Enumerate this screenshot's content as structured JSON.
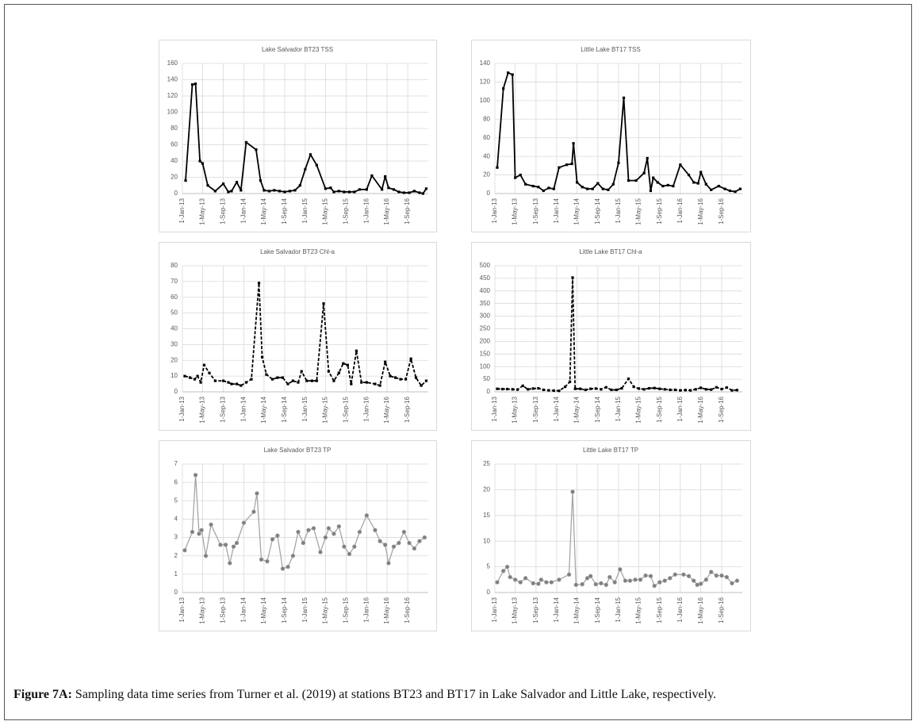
{
  "chart_data": [
    {
      "type": "line",
      "title": "Lake Salvador BT23 TSS",
      "color": "#000000",
      "line_style": "solid",
      "marker": "square",
      "grid": true,
      "ylim": [
        0,
        160
      ],
      "yticks": [
        0,
        20,
        40,
        60,
        80,
        100,
        120,
        140,
        160
      ],
      "xlim": [
        "2013-01-01",
        "2017-01-01"
      ],
      "xticks": [
        {
          "value": "2013-01-01",
          "label": "1-Jan-13"
        },
        {
          "value": "2013-05-01",
          "label": "1-May-13"
        },
        {
          "value": "2013-09-01",
          "label": "1-Sep-13"
        },
        {
          "value": "2014-01-01",
          "label": "1-Jan-14"
        },
        {
          "value": "2014-05-01",
          "label": "1-May-14"
        },
        {
          "value": "2014-09-01",
          "label": "1-Sep-14"
        },
        {
          "value": "2015-01-01",
          "label": "1-Jan-15"
        },
        {
          "value": "2015-05-01",
          "label": "1-May-15"
        },
        {
          "value": "2015-09-01",
          "label": "1-Sep-15"
        },
        {
          "value": "2016-01-01",
          "label": "1-Jan-16"
        },
        {
          "value": "2016-05-01",
          "label": "1-May-16"
        },
        {
          "value": "2016-09-01",
          "label": "1-Sep-16"
        }
      ],
      "x": [
        "2013-01-20",
        "2013-03-01",
        "2013-03-20",
        "2013-04-15",
        "2013-05-01",
        "2013-06-01",
        "2013-07-15",
        "2013-09-01",
        "2013-10-01",
        "2013-10-20",
        "2013-11-20",
        "2013-12-15",
        "2014-01-15",
        "2014-03-15",
        "2014-04-10",
        "2014-05-01",
        "2014-06-01",
        "2014-07-01",
        "2014-08-01",
        "2014-09-01",
        "2014-10-01",
        "2014-11-01",
        "2014-12-01",
        "2015-01-01",
        "2015-02-01",
        "2015-03-10",
        "2015-05-01",
        "2015-06-01",
        "2015-06-20",
        "2015-07-20",
        "2015-08-20",
        "2015-09-20",
        "2015-10-20",
        "2015-11-20",
        "2016-01-01",
        "2016-02-01",
        "2016-04-01",
        "2016-04-20",
        "2016-05-10",
        "2016-06-10",
        "2016-07-10",
        "2016-08-10",
        "2016-09-10",
        "2016-10-10",
        "2016-11-10",
        "2016-12-01",
        "2016-12-20"
      ],
      "values": [
        16,
        134,
        135,
        40,
        37,
        10,
        3,
        12,
        2,
        3,
        14,
        4,
        63,
        54,
        16,
        4,
        3,
        4,
        3,
        2,
        3,
        4,
        10,
        30,
        48,
        35,
        6,
        7,
        2,
        3,
        2,
        2,
        2,
        5,
        5,
        22,
        5,
        21,
        7,
        5,
        2,
        1,
        1,
        3,
        1,
        0,
        6
      ]
    },
    {
      "type": "line",
      "title": "Little Lake BT17 TSS",
      "color": "#000000",
      "line_style": "solid",
      "marker": "square",
      "grid": true,
      "ylim": [
        0,
        140
      ],
      "yticks": [
        0,
        20,
        40,
        60,
        80,
        100,
        120,
        140
      ],
      "xlim": [
        "2013-01-01",
        "2017-01-01"
      ],
      "xticks": [
        {
          "value": "2013-01-01",
          "label": "1-Jan-13"
        },
        {
          "value": "2013-05-01",
          "label": "1-May-13"
        },
        {
          "value": "2013-09-01",
          "label": "1-Sep-13"
        },
        {
          "value": "2014-01-01",
          "label": "1-Jan-14"
        },
        {
          "value": "2014-05-01",
          "label": "1-May-14"
        },
        {
          "value": "2014-09-01",
          "label": "1-Sep-14"
        },
        {
          "value": "2015-01-01",
          "label": "1-Jan-15"
        },
        {
          "value": "2015-05-01",
          "label": "1-May-15"
        },
        {
          "value": "2015-09-01",
          "label": "1-Sep-15"
        },
        {
          "value": "2016-01-01",
          "label": "1-Jan-16"
        },
        {
          "value": "2016-05-01",
          "label": "1-May-16"
        },
        {
          "value": "2016-09-01",
          "label": "1-Sep-16"
        }
      ],
      "x": [
        "2013-01-15",
        "2013-02-20",
        "2013-03-20",
        "2013-04-15",
        "2013-05-01",
        "2013-06-01",
        "2013-07-01",
        "2013-08-15",
        "2013-09-15",
        "2013-10-15",
        "2013-11-15",
        "2013-12-15",
        "2014-01-15",
        "2014-03-01",
        "2014-04-01",
        "2014-04-10",
        "2014-05-01",
        "2014-06-01",
        "2014-07-01",
        "2014-08-01",
        "2014-09-01",
        "2014-10-01",
        "2014-11-01",
        "2014-12-01",
        "2015-01-01",
        "2015-02-01",
        "2015-03-01",
        "2015-04-15",
        "2015-06-01",
        "2015-06-20",
        "2015-07-10",
        "2015-07-25",
        "2015-08-20",
        "2015-09-20",
        "2015-10-20",
        "2015-11-20",
        "2016-01-01",
        "2016-02-20",
        "2016-03-20",
        "2016-04-15",
        "2016-05-01",
        "2016-06-01",
        "2016-07-01",
        "2016-08-15",
        "2016-09-20",
        "2016-10-20",
        "2016-11-20",
        "2016-12-20"
      ],
      "values": [
        28,
        113,
        130,
        128,
        17,
        20,
        10,
        8,
        7,
        3,
        6,
        5,
        28,
        31,
        32,
        54,
        12,
        7,
        5,
        5,
        11,
        5,
        4,
        10,
        33,
        103,
        14,
        14,
        22,
        38,
        3,
        17,
        12,
        8,
        9,
        8,
        31,
        20,
        12,
        11,
        23,
        10,
        4,
        8,
        5,
        3,
        2,
        5
      ]
    },
    {
      "type": "line",
      "title": "Lake Salvador BT23 Chl-a",
      "color": "#000000",
      "line_style": "dashed",
      "marker": "square",
      "grid": true,
      "ylim": [
        0,
        80
      ],
      "yticks": [
        0,
        10,
        20,
        30,
        40,
        50,
        60,
        70,
        80
      ],
      "xlim": [
        "2013-01-01",
        "2017-01-01"
      ],
      "xticks": [
        {
          "value": "2013-01-01",
          "label": "1-Jan-13"
        },
        {
          "value": "2013-05-01",
          "label": "1-May-13"
        },
        {
          "value": "2013-09-01",
          "label": "1-Sep-13"
        },
        {
          "value": "2014-01-01",
          "label": "1-Jan-14"
        },
        {
          "value": "2014-05-01",
          "label": "1-May-14"
        },
        {
          "value": "2014-09-01",
          "label": "1-Sep-14"
        },
        {
          "value": "2015-01-01",
          "label": "1-Jan-15"
        },
        {
          "value": "2015-05-01",
          "label": "1-May-15"
        },
        {
          "value": "2015-09-01",
          "label": "1-Sep-15"
        },
        {
          "value": "2016-01-01",
          "label": "1-Jan-16"
        },
        {
          "value": "2016-05-01",
          "label": "1-May-16"
        },
        {
          "value": "2016-09-01",
          "label": "1-Sep-16"
        }
      ],
      "x": [
        "2013-01-15",
        "2013-02-15",
        "2013-03-15",
        "2013-04-01",
        "2013-04-20",
        "2013-05-10",
        "2013-06-10",
        "2013-07-15",
        "2013-09-01",
        "2013-10-01",
        "2013-10-20",
        "2013-11-20",
        "2013-12-15",
        "2014-01-15",
        "2014-02-15",
        "2014-04-01",
        "2014-04-20",
        "2014-05-15",
        "2014-06-20",
        "2014-07-20",
        "2014-08-20",
        "2014-09-20",
        "2014-10-20",
        "2014-11-20",
        "2014-12-10",
        "2015-01-10",
        "2015-02-10",
        "2015-03-10",
        "2015-04-20",
        "2015-05-20",
        "2015-06-20",
        "2015-07-20",
        "2015-08-15",
        "2015-09-10",
        "2015-10-01",
        "2015-11-01",
        "2015-12-01",
        "2016-01-01",
        "2016-02-20",
        "2016-03-20",
        "2016-04-20",
        "2016-05-20",
        "2016-06-20",
        "2016-07-20",
        "2016-08-20",
        "2016-09-20",
        "2016-10-20",
        "2016-11-20",
        "2016-12-20"
      ],
      "values": [
        10,
        9,
        8,
        10,
        6,
        17,
        12,
        7,
        7,
        6,
        5,
        5,
        4,
        6,
        8,
        69,
        22,
        11,
        8,
        9,
        9,
        5,
        7,
        6,
        13,
        7,
        7,
        7,
        56,
        13,
        7,
        12,
        18,
        17,
        5,
        26,
        6,
        6,
        5,
        4,
        19,
        10,
        9,
        8,
        8,
        21,
        9,
        4,
        7
      ]
    },
    {
      "type": "line",
      "title": "Little Lake BT17 Chl-a",
      "color": "#000000",
      "line_style": "dashed",
      "marker": "square",
      "grid": true,
      "ylim": [
        0,
        500
      ],
      "yticks": [
        0,
        50,
        100,
        150,
        200,
        250,
        300,
        350,
        400,
        450,
        500
      ],
      "xlim": [
        "2013-01-01",
        "2017-01-01"
      ],
      "xticks": [
        {
          "value": "2013-01-01",
          "label": "1-Jan-13"
        },
        {
          "value": "2013-05-01",
          "label": "1-May-13"
        },
        {
          "value": "2013-09-01",
          "label": "1-Sep-13"
        },
        {
          "value": "2014-01-01",
          "label": "1-Jan-14"
        },
        {
          "value": "2014-05-01",
          "label": "1-May-14"
        },
        {
          "value": "2014-09-01",
          "label": "1-Sep-14"
        },
        {
          "value": "2015-01-01",
          "label": "1-Jan-15"
        },
        {
          "value": "2015-05-01",
          "label": "1-May-15"
        },
        {
          "value": "2015-09-01",
          "label": "1-Sep-15"
        },
        {
          "value": "2016-01-01",
          "label": "1-Jan-16"
        },
        {
          "value": "2016-05-01",
          "label": "1-May-16"
        },
        {
          "value": "2016-09-01",
          "label": "1-Sep-16"
        }
      ],
      "x": [
        "2013-01-15",
        "2013-02-15",
        "2013-03-15",
        "2013-04-15",
        "2013-05-15",
        "2013-06-15",
        "2013-07-15",
        "2013-08-15",
        "2013-09-15",
        "2013-10-15",
        "2013-11-15",
        "2013-12-15",
        "2014-01-15",
        "2014-02-20",
        "2014-03-20",
        "2014-04-05",
        "2014-04-20",
        "2014-05-20",
        "2014-06-20",
        "2014-07-20",
        "2014-08-20",
        "2014-09-20",
        "2014-10-20",
        "2014-11-20",
        "2014-12-20",
        "2015-01-20",
        "2015-03-01",
        "2015-04-01",
        "2015-05-01",
        "2015-06-01",
        "2015-07-01",
        "2015-08-01",
        "2015-09-01",
        "2015-10-01",
        "2015-11-01",
        "2015-12-01",
        "2016-01-01",
        "2016-02-01",
        "2016-03-01",
        "2016-04-01",
        "2016-05-01",
        "2016-06-01",
        "2016-07-01",
        "2016-08-01",
        "2016-09-01",
        "2016-10-01",
        "2016-11-01",
        "2016-12-01"
      ],
      "values": [
        12,
        11,
        11,
        10,
        9,
        24,
        10,
        13,
        14,
        8,
        6,
        5,
        4,
        20,
        40,
        453,
        12,
        12,
        8,
        12,
        13,
        10,
        18,
        8,
        8,
        14,
        52,
        20,
        13,
        10,
        14,
        15,
        12,
        10,
        8,
        8,
        6,
        7,
        6,
        10,
        16,
        10,
        9,
        18,
        11,
        17,
        6,
        7
      ]
    },
    {
      "type": "line",
      "title": "Lake Salvador BT23 TP",
      "color": "#a6a6a6",
      "line_style": "solid",
      "marker": "circle",
      "grid": true,
      "ylim": [
        0,
        7
      ],
      "yticks": [
        0,
        1,
        2,
        3,
        4,
        5,
        6,
        7
      ],
      "xlim": [
        "2013-01-01",
        "2017-01-01"
      ],
      "xticks": [
        {
          "value": "2013-01-01",
          "label": "1-Jan-13"
        },
        {
          "value": "2013-05-01",
          "label": "1-May-13"
        },
        {
          "value": "2013-09-01",
          "label": "1-Sep-13"
        },
        {
          "value": "2014-01-01",
          "label": "1-Jan-14"
        },
        {
          "value": "2014-05-01",
          "label": "1-May-14"
        },
        {
          "value": "2014-09-01",
          "label": "1-Sep-14"
        },
        {
          "value": "2015-01-01",
          "label": "1-Jan-15"
        },
        {
          "value": "2015-05-01",
          "label": "1-May-15"
        },
        {
          "value": "2015-09-01",
          "label": "1-Sep-15"
        },
        {
          "value": "2016-01-01",
          "label": "1-Jan-16"
        },
        {
          "value": "2016-05-01",
          "label": "1-May-16"
        },
        {
          "value": "2016-09-01",
          "label": "1-Sep-16"
        }
      ],
      "x": [
        "2013-01-15",
        "2013-03-01",
        "2013-03-20",
        "2013-04-10",
        "2013-04-25",
        "2013-05-20",
        "2013-06-20",
        "2013-08-15",
        "2013-09-15",
        "2013-10-10",
        "2013-11-01",
        "2013-11-20",
        "2014-01-01",
        "2014-03-01",
        "2014-03-20",
        "2014-04-15",
        "2014-05-20",
        "2014-06-20",
        "2014-07-20",
        "2014-08-20",
        "2014-09-20",
        "2014-10-20",
        "2014-11-20",
        "2014-12-20",
        "2015-01-20",
        "2015-02-20",
        "2015-04-01",
        "2015-05-01",
        "2015-05-20",
        "2015-06-20",
        "2015-07-20",
        "2015-08-20",
        "2015-09-20",
        "2015-10-20",
        "2015-11-20",
        "2016-01-01",
        "2016-02-20",
        "2016-03-20",
        "2016-04-20",
        "2016-05-10",
        "2016-06-10",
        "2016-07-10",
        "2016-08-10",
        "2016-09-10",
        "2016-10-10",
        "2016-11-10",
        "2016-12-10"
      ],
      "values": [
        2.3,
        3.3,
        6.4,
        3.2,
        3.4,
        2.0,
        3.7,
        2.6,
        2.6,
        1.6,
        2.5,
        2.7,
        3.8,
        4.4,
        5.4,
        1.8,
        1.7,
        2.9,
        3.1,
        1.3,
        1.4,
        2.0,
        3.3,
        2.7,
        3.4,
        3.5,
        2.2,
        3.0,
        3.5,
        3.2,
        3.6,
        2.5,
        2.1,
        2.5,
        3.3,
        4.2,
        3.4,
        2.8,
        2.6,
        1.6,
        2.5,
        2.7,
        3.3,
        2.7,
        2.4,
        2.8,
        3.0
      ]
    },
    {
      "type": "line",
      "title": "Little Lake BT17 TP",
      "color": "#a6a6a6",
      "line_style": "solid",
      "marker": "circle",
      "grid": true,
      "ylim": [
        0,
        25
      ],
      "yticks": [
        0,
        5,
        10,
        15,
        20,
        25
      ],
      "xlim": [
        "2013-01-01",
        "2017-01-01"
      ],
      "xticks": [
        {
          "value": "2013-01-01",
          "label": "1-Jan-13"
        },
        {
          "value": "2013-05-01",
          "label": "1-May-13"
        },
        {
          "value": "2013-09-01",
          "label": "1-Sep-13"
        },
        {
          "value": "2014-01-01",
          "label": "1-Jan-14"
        },
        {
          "value": "2014-05-01",
          "label": "1-May-14"
        },
        {
          "value": "2014-09-01",
          "label": "1-Sep-14"
        },
        {
          "value": "2015-01-01",
          "label": "1-Jan-15"
        },
        {
          "value": "2015-05-01",
          "label": "1-May-15"
        },
        {
          "value": "2015-09-01",
          "label": "1-Sep-15"
        },
        {
          "value": "2016-01-01",
          "label": "1-Jan-16"
        },
        {
          "value": "2016-05-01",
          "label": "1-May-16"
        },
        {
          "value": "2016-09-01",
          "label": "1-Sep-16"
        }
      ],
      "x": [
        "2013-01-15",
        "2013-02-20",
        "2013-03-15",
        "2013-04-01",
        "2013-05-01",
        "2013-06-01",
        "2013-07-01",
        "2013-08-15",
        "2013-09-15",
        "2013-10-01",
        "2013-11-01",
        "2013-12-01",
        "2014-01-15",
        "2014-03-15",
        "2014-04-05",
        "2014-04-25",
        "2014-06-01",
        "2014-07-01",
        "2014-07-20",
        "2014-08-20",
        "2014-09-20",
        "2014-10-20",
        "2014-11-10",
        "2014-12-10",
        "2015-01-10",
        "2015-02-10",
        "2015-03-10",
        "2015-04-10",
        "2015-05-10",
        "2015-06-10",
        "2015-07-10",
        "2015-08-01",
        "2015-09-01",
        "2015-10-01",
        "2015-11-01",
        "2015-12-01",
        "2016-01-20",
        "2016-02-20",
        "2016-03-20",
        "2016-04-10",
        "2016-05-01",
        "2016-06-01",
        "2016-07-01",
        "2016-08-01",
        "2016-09-01",
        "2016-10-01",
        "2016-11-01",
        "2016-12-01"
      ],
      "values": [
        2.0,
        4.2,
        5.0,
        3.0,
        2.5,
        2.0,
        2.8,
        1.8,
        1.7,
        2.5,
        2.0,
        2.0,
        2.5,
        3.5,
        19.6,
        1.5,
        1.6,
        2.8,
        3.2,
        1.6,
        1.8,
        1.5,
        3.0,
        2.0,
        4.5,
        2.3,
        2.3,
        2.5,
        2.5,
        3.3,
        3.2,
        1.3,
        2.0,
        2.3,
        2.8,
        3.5,
        3.5,
        3.2,
        2.3,
        1.5,
        1.7,
        2.5,
        4.0,
        3.3,
        3.3,
        3.0,
        1.8,
        2.3
      ]
    }
  ],
  "caption": {
    "label": "Figure 7A:",
    "text": "Sampling data time series from Turner et al. (2019) at stations BT23 and BT17 in Lake Salvador and Little Lake, respectively."
  }
}
